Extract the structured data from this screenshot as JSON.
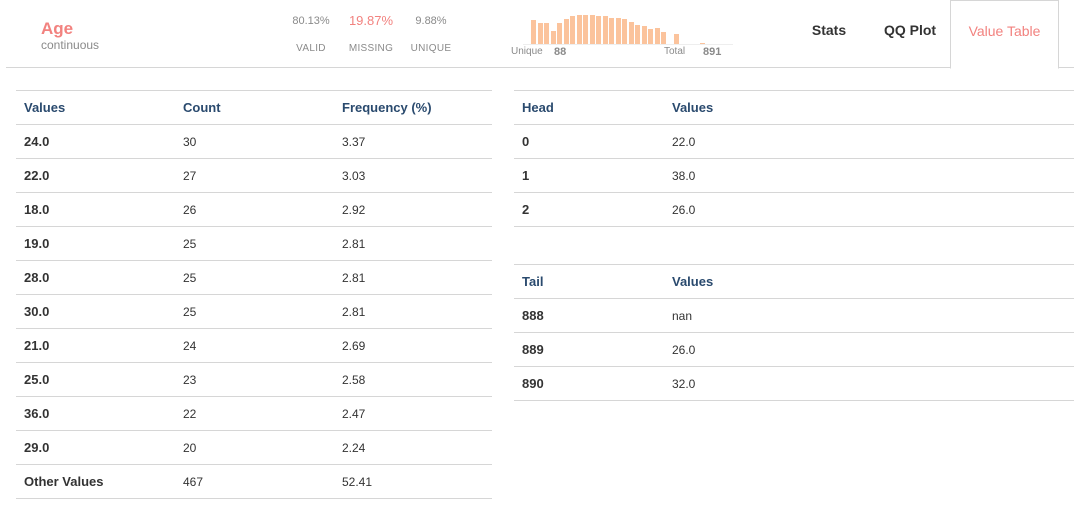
{
  "variable": {
    "name": "Age",
    "type": "continuous"
  },
  "stats": {
    "valid_pct": "80.13%",
    "valid_label": "VALID",
    "missing_pct": "19.87%",
    "missing_label": "MISSING",
    "unique_pct": "9.88%",
    "unique_label": "UNIQUE"
  },
  "mini_histogram": {
    "unique_label": "Unique",
    "unique_value": "88",
    "total_label": "Total",
    "total_value": "891",
    "bar_fractions": [
      0.8,
      0.7,
      0.7,
      0.45,
      0.7,
      0.85,
      0.95,
      0.97,
      0.98,
      0.97,
      0.92,
      0.93,
      0.88,
      0.87,
      0.85,
      0.72,
      0.62,
      0.6,
      0.5,
      0.52,
      0.4,
      0.0,
      0.33,
      0.0,
      0.0,
      0.0,
      0.04
    ],
    "color": "#fbc39c"
  },
  "tabs": [
    {
      "label": "Stats",
      "active": false
    },
    {
      "label": "QQ Plot",
      "active": false
    },
    {
      "label": "Value Table",
      "active": true
    }
  ],
  "accent_color": "#f2827f",
  "value_table": {
    "headers": [
      "Values",
      "Count",
      "Frequency (%)"
    ],
    "rows": [
      [
        "24.0",
        "30",
        "3.37"
      ],
      [
        "22.0",
        "27",
        "3.03"
      ],
      [
        "18.0",
        "26",
        "2.92"
      ],
      [
        "19.0",
        "25",
        "2.81"
      ],
      [
        "28.0",
        "25",
        "2.81"
      ],
      [
        "30.0",
        "25",
        "2.81"
      ],
      [
        "21.0",
        "24",
        "2.69"
      ],
      [
        "25.0",
        "23",
        "2.58"
      ],
      [
        "36.0",
        "22",
        "2.47"
      ],
      [
        "29.0",
        "20",
        "2.24"
      ],
      [
        "Other Values",
        "467",
        "52.41"
      ]
    ]
  },
  "head_table": {
    "headers": [
      "Head",
      "Values"
    ],
    "rows": [
      [
        "0",
        "22.0"
      ],
      [
        "1",
        "38.0"
      ],
      [
        "2",
        "26.0"
      ]
    ]
  },
  "tail_table": {
    "headers": [
      "Tail",
      "Values"
    ],
    "rows": [
      [
        "888",
        "nan"
      ],
      [
        "889",
        "26.0"
      ],
      [
        "890",
        "32.0"
      ]
    ]
  }
}
